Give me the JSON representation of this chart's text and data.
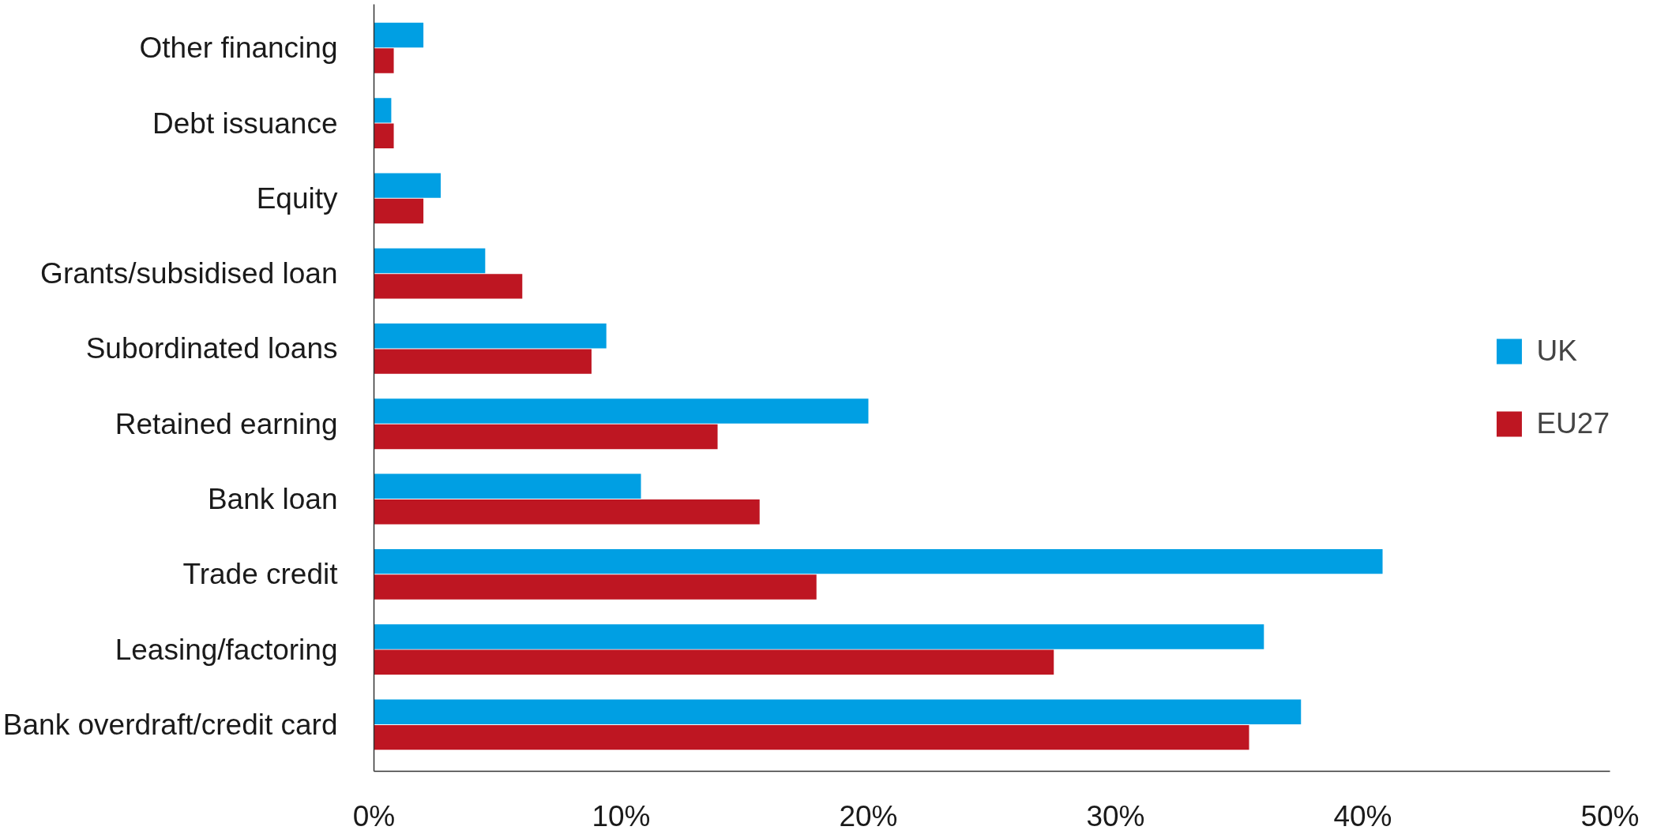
{
  "chart_data": {
    "type": "bar",
    "orientation": "horizontal",
    "categories": [
      "Other financing",
      "Debt issuance",
      "Equity",
      "Grants/subsidised loan",
      "Subordinated loans",
      "Retained earning",
      "Bank loan",
      "Trade credit",
      "Leasing/factoring",
      "Bank overdraft/credit card"
    ],
    "series": [
      {
        "name": "UK",
        "color": "#009fe3",
        "values": [
          2.0,
          0.7,
          2.7,
          4.5,
          9.4,
          20.0,
          10.8,
          40.8,
          36.0,
          37.5
        ]
      },
      {
        "name": "EU27",
        "color": "#be1622",
        "values": [
          0.8,
          0.8,
          2.0,
          6.0,
          8.8,
          13.9,
          15.6,
          17.9,
          27.5,
          35.4
        ]
      }
    ],
    "xlim": [
      0,
      50
    ],
    "xticks": [
      {
        "value": 0,
        "label": "0%"
      },
      {
        "value": 10,
        "label": "10%"
      },
      {
        "value": 20,
        "label": "20%"
      },
      {
        "value": 30,
        "label": "30%"
      },
      {
        "value": 40,
        "label": "40%"
      },
      {
        "value": 50,
        "label": "50%"
      }
    ],
    "grid": false,
    "legend": "right"
  }
}
